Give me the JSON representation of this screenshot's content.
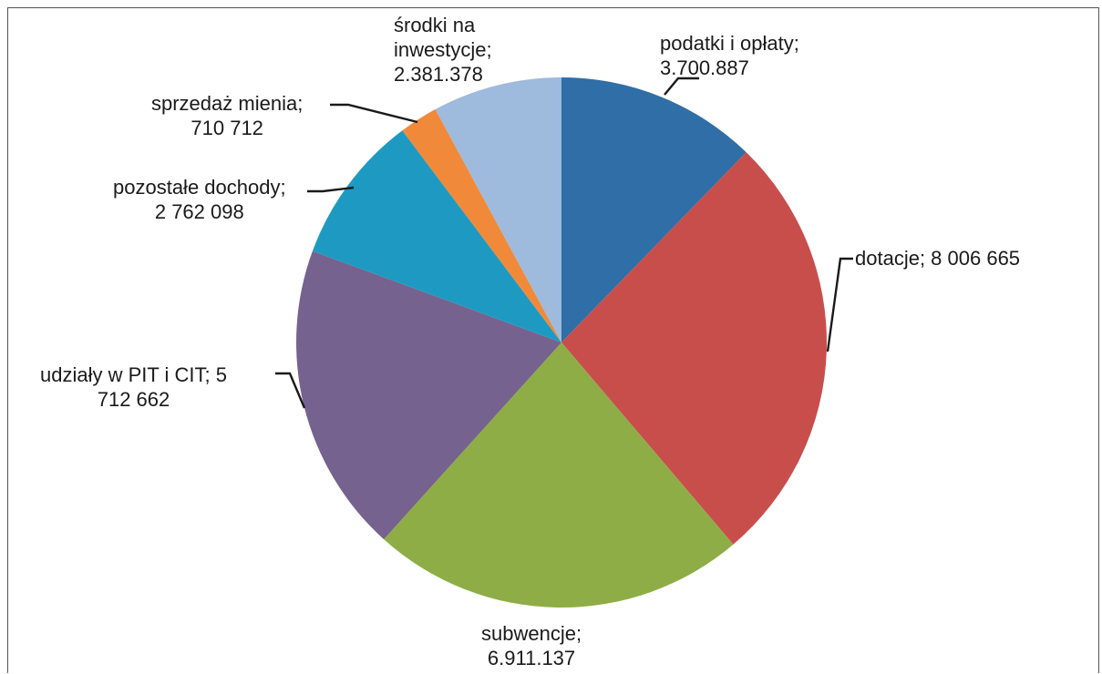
{
  "chart_data": {
    "type": "pie",
    "title": "",
    "slices": [
      {
        "name": "podatki i opłaty",
        "value": 3700887,
        "label_lines": [
          "podatki i opłaty;",
          "3.700.887"
        ],
        "color": "#2f6ea6"
      },
      {
        "name": "dotacje",
        "value": 8006665,
        "label_lines": [
          "dotacje; 8 006 665"
        ],
        "color": "#c84e4c"
      },
      {
        "name": "subwencje",
        "value": 6911137,
        "label_lines": [
          "subwencje;",
          "6.911.137"
        ],
        "color": "#8ead46"
      },
      {
        "name": "udziały w PIT i CIT",
        "value": 5712662,
        "label_lines": [
          "udziały w PIT i CIT; 5",
          "712 662"
        ],
        "color": "#76628e"
      },
      {
        "name": "pozostałe dochody",
        "value": 2762098,
        "label_lines": [
          "pozostałe dochody;",
          "2 762 098"
        ],
        "color": "#1e9ac2"
      },
      {
        "name": "sprzedaż mienia",
        "value": 710712,
        "label_lines": [
          "sprzedaż mienia;",
          "710 712"
        ],
        "color": "#f08a3a"
      },
      {
        "name": "środki na inwestycje",
        "value": 2381378,
        "label_lines": [
          "środki na",
          "inwestycje;",
          "2.381.378"
        ],
        "color": "#9ebadc"
      }
    ],
    "start_angle": "12 o'clock",
    "direction": "clockwise",
    "legend": "none"
  }
}
